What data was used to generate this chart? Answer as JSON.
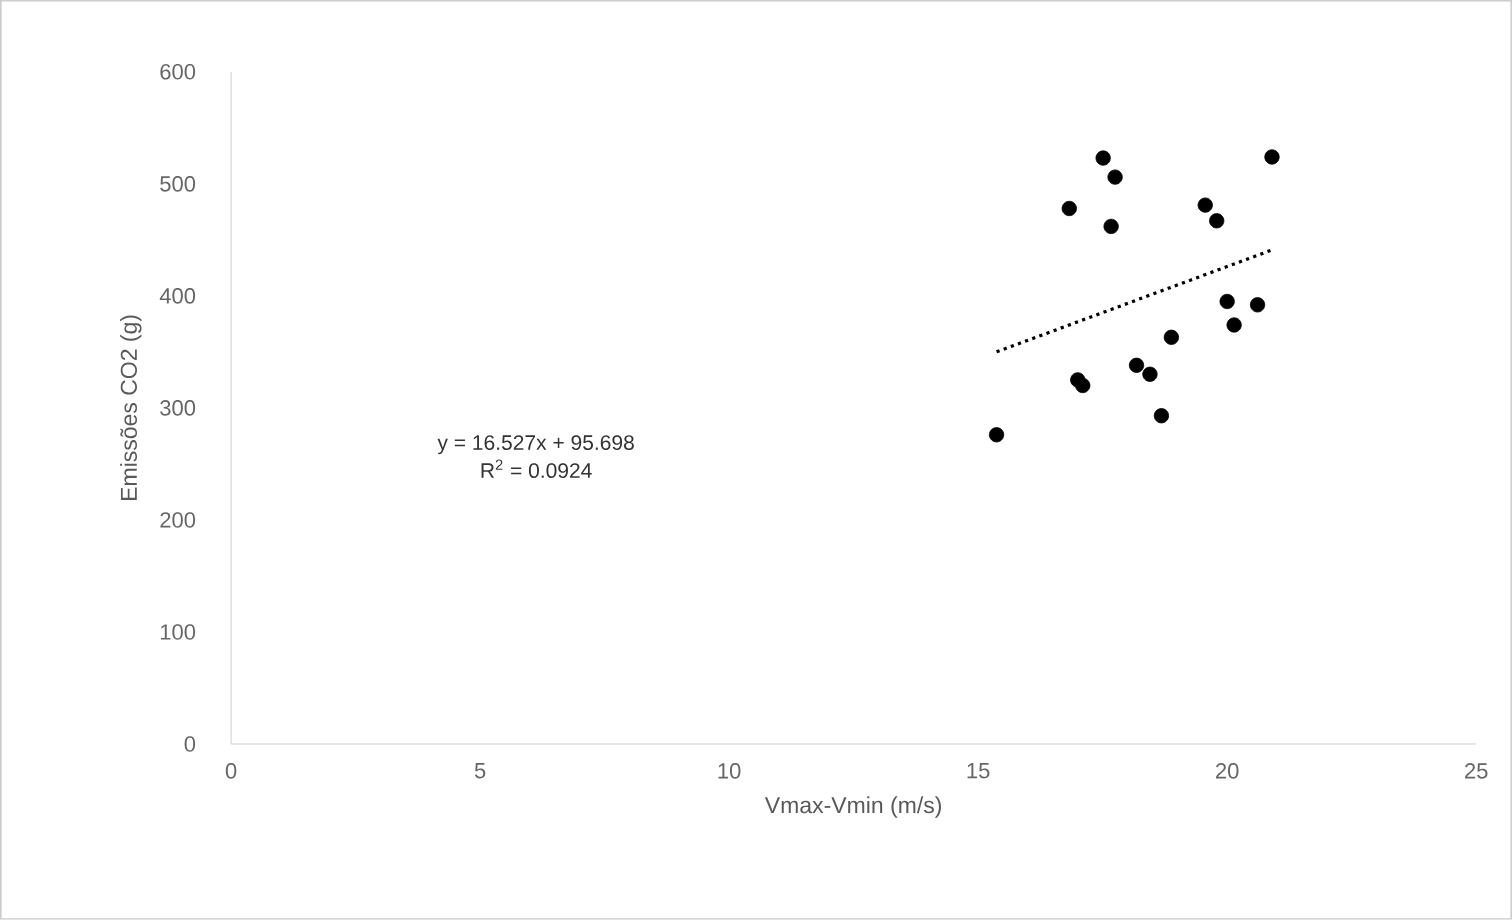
{
  "chart_data": {
    "type": "scatter",
    "xlabel": "Vmax-Vmin (m/s)",
    "ylabel": "Emissões CO2 (g)",
    "xlim": [
      0,
      25
    ],
    "xticks": [
      0,
      5,
      10,
      15,
      20,
      25
    ],
    "ylim": [
      0,
      600
    ],
    "yticks": [
      0,
      100,
      200,
      300,
      400,
      500,
      600
    ],
    "grid": false,
    "series": [
      {
        "color": "#000000",
        "marker": "circle",
        "x": [
          15.37,
          16.83,
          17.51,
          17.75,
          17.67,
          19.56,
          19.79,
          20.9,
          17.0,
          17.1,
          18.18,
          18.45,
          18.88,
          18.68,
          20.0,
          20.61,
          20.14
        ],
        "values": [
          276,
          478,
          523,
          506,
          462,
          481,
          467,
          524,
          325,
          320,
          338,
          330,
          363,
          293,
          395,
          392,
          374
        ]
      },
      {
        "type": "line",
        "color": "#000000",
        "marker": "none",
        "line_style": "dotted",
        "x": [
          15.37,
          20.9
        ],
        "values": [
          350,
          441
        ]
      }
    ],
    "annotations": [
      "y = 16.527x + 95.698",
      "R$^{2}$ = 0.0924"
    ]
  }
}
